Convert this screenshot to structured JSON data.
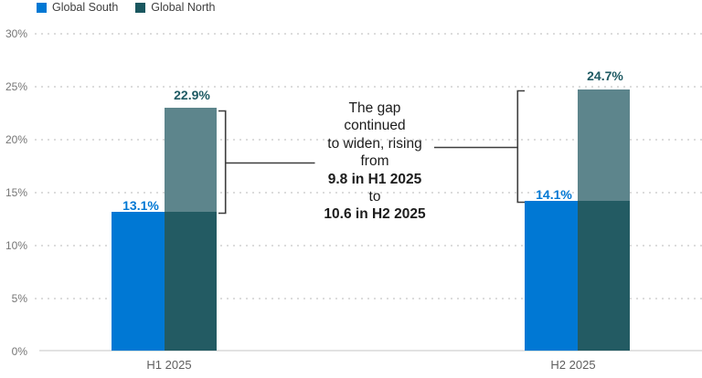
{
  "chart_data": {
    "type": "bar",
    "title": "",
    "categories": [
      "H1 2025",
      "H2 2025"
    ],
    "series": [
      {
        "name": "Global South",
        "color": "#0078d4",
        "values": [
          13.1,
          14.1
        ],
        "data_labels": [
          "13.1%",
          "14.1%"
        ]
      },
      {
        "name": "Global North",
        "color": "#235b63",
        "overlap_faded_color": "#5d858c",
        "legend_color": "#1a575f",
        "values": [
          22.9,
          24.7
        ],
        "data_labels": [
          "22.9%",
          "24.7%"
        ]
      }
    ],
    "gap_values": [
      9.8,
      10.6
    ],
    "xlabel": "",
    "ylabel": "",
    "ylim": [
      0,
      30
    ],
    "yticks_top_to_bottom": [
      "30%",
      "25%",
      "20%",
      "15%",
      "10%",
      "5%",
      "0%"
    ],
    "grid": "dotted-horizontal",
    "legend_position": "top-left"
  },
  "annotation": {
    "lines": [
      {
        "text": "The gap",
        "bold": false
      },
      {
        "text": "continued",
        "bold": false
      },
      {
        "text": "to widen, rising",
        "bold": false
      },
      {
        "text": "from",
        "bold": false
      },
      {
        "text": "9.8 in H1 2025",
        "bold": true
      },
      {
        "text": "to",
        "bold": false
      },
      {
        "text": "10.6 in H2 2025",
        "bold": true
      }
    ]
  },
  "colors": {
    "south": "#0078d4",
    "north_solid": "#235b63",
    "north_faded": "#5d858c",
    "north_legend": "#1a575f",
    "axis_text": "#767676",
    "category_text": "#5f5f5f",
    "gridline": "#dcdcdc",
    "bracket": "#3d3d3d",
    "south_label": "#0078d4",
    "north_label": "#1e5a63",
    "annotation_text": "#1c1c1c"
  }
}
